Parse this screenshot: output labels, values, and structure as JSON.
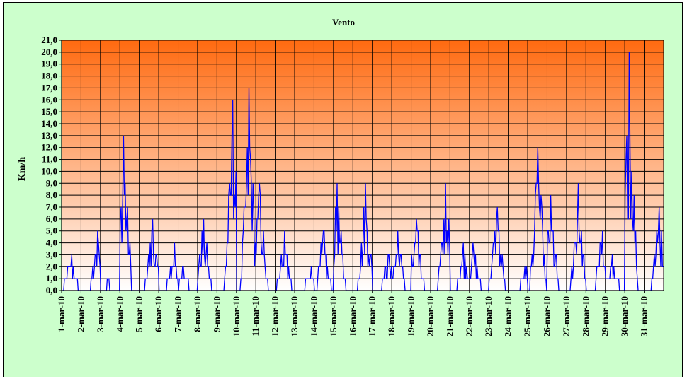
{
  "chart_data": {
    "type": "line",
    "title": "Vento",
    "ylabel": "Km/h",
    "xlabel": "",
    "ylim": [
      0,
      21
    ],
    "y_ticks": [
      "0,0",
      "1,0",
      "2,0",
      "3,0",
      "4,0",
      "5,0",
      "6,0",
      "7,0",
      "8,0",
      "9,0",
      "10,0",
      "11,0",
      "12,0",
      "13,0",
      "14,0",
      "15,0",
      "16,0",
      "17,0",
      "18,0",
      "19,0",
      "20,0",
      "21,0"
    ],
    "categories": [
      "1-mar-10",
      "2-mar-10",
      "3-mar-10",
      "4-mar-10",
      "5-mar-10",
      "6-mar-10",
      "7-mar-10",
      "8-mar-10",
      "9-mar-10",
      "10-mar-10",
      "11-mar-10",
      "12-mar-10",
      "13-mar-10",
      "14-mar-10",
      "15-mar-10",
      "16-mar-10",
      "17-mar-10",
      "18-mar-10",
      "19-mar-10",
      "20-mar-10",
      "21-mar-10",
      "22-mar-10",
      "23-mar-10",
      "24-mar-10",
      "25-mar-10",
      "26-mar-10",
      "27-mar-10",
      "28-mar-10",
      "29-mar-10",
      "30-mar-10",
      "31-mar-10"
    ],
    "grid": true,
    "background_gradient": {
      "top": "#ff6a10",
      "bottom": "#ffffff"
    },
    "series": [
      {
        "color": "#0000ff",
        "daily_max": [
          3,
          5,
          1,
          13,
          6,
          4,
          2,
          6,
          16,
          17,
          9,
          5,
          2,
          5,
          9,
          9,
          3,
          5,
          6,
          9,
          4,
          4,
          7,
          2,
          12,
          8,
          9,
          5,
          3,
          20,
          7
        ]
      }
    ]
  }
}
